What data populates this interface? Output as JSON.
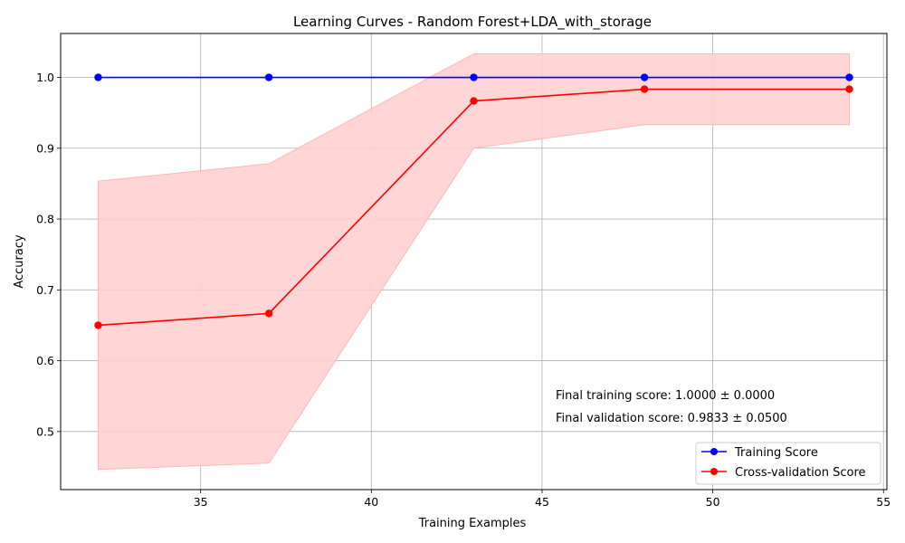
{
  "chart_data": {
    "type": "line",
    "title": "Learning Curves - Random Forest+LDA_with_storage",
    "xlabel": "Training Examples",
    "ylabel": "Accuracy",
    "xlim": [
      30.9,
      55.1
    ],
    "ylim": [
      0.418,
      1.062
    ],
    "xticks": [
      35,
      40,
      45,
      50,
      55
    ],
    "yticks": [
      0.5,
      0.6,
      0.7,
      0.8,
      0.9,
      1.0
    ],
    "grid": true,
    "legend_position": "lower-right",
    "x": [
      32,
      37,
      43,
      48,
      54
    ],
    "series": [
      {
        "name": "Training Score",
        "color": "#0000ff",
        "values": [
          1.0,
          1.0,
          1.0,
          1.0,
          1.0
        ],
        "band_lower": [
          1.0,
          1.0,
          1.0,
          1.0,
          1.0
        ],
        "band_upper": [
          1.0,
          1.0,
          1.0,
          1.0,
          1.0
        ]
      },
      {
        "name": "Cross-validation Score",
        "color": "#ff0000",
        "band_color": "#ffd0d0",
        "values": [
          0.65,
          0.6667,
          0.9667,
          0.9833,
          0.9833
        ],
        "band_lower": [
          0.4465,
          0.4553,
          0.9,
          0.9333,
          0.9333
        ],
        "band_upper": [
          0.8535,
          0.8781,
          1.0333,
          1.0333,
          1.0333
        ]
      }
    ],
    "annotations": [
      "Final training score: 1.0000 ± 0.0000",
      "Final validation score: 0.9833 ± 0.0500"
    ]
  }
}
